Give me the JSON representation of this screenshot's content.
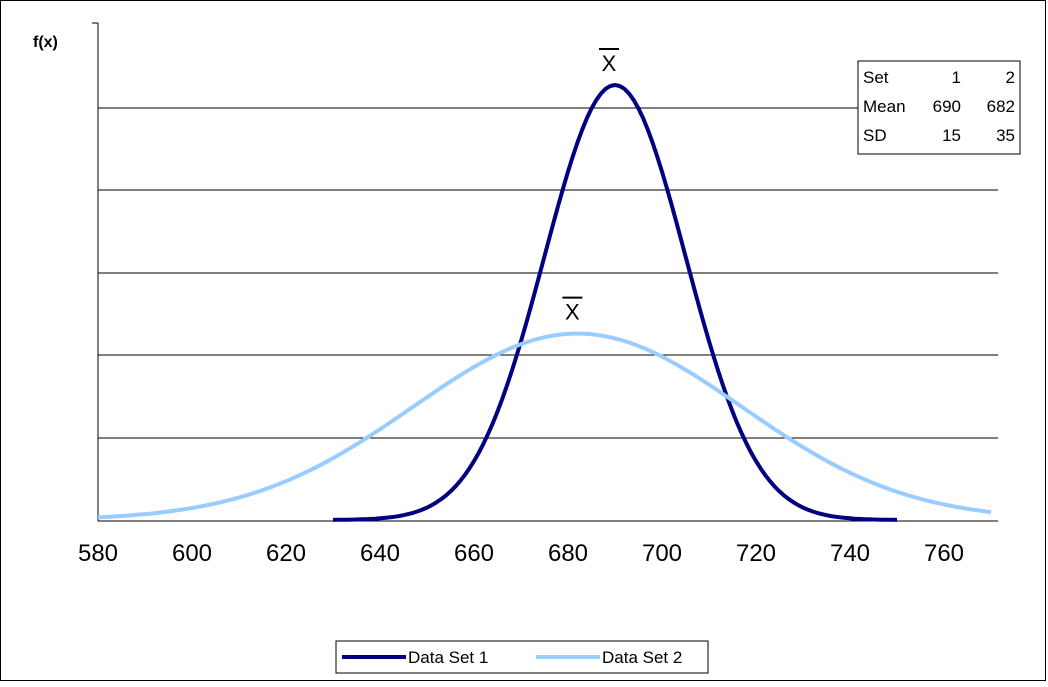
{
  "chart_data": {
    "type": "line",
    "ylabel": "f(x)",
    "xlim": [
      580,
      770
    ],
    "x_ticks": [
      "580",
      "600",
      "620",
      "640",
      "660",
      "680",
      "700",
      "720",
      "740",
      "760"
    ],
    "y_gridlines": 5,
    "grid": true,
    "legend_position": "bottom",
    "mean_marker": "X",
    "series": [
      {
        "name": "Data Set 1",
        "color": "#000080",
        "mean": 690,
        "sd": 15,
        "x_range": [
          630,
          750
        ]
      },
      {
        "name": "Data Set 2",
        "color": "#99ccff",
        "mean": 682,
        "sd": 35,
        "x_range": [
          580,
          770
        ]
      }
    ],
    "table": {
      "header": [
        "Set",
        "1",
        "2"
      ],
      "rows": [
        [
          "Mean",
          "690",
          "682"
        ],
        [
          "SD",
          "15",
          "35"
        ]
      ]
    }
  }
}
